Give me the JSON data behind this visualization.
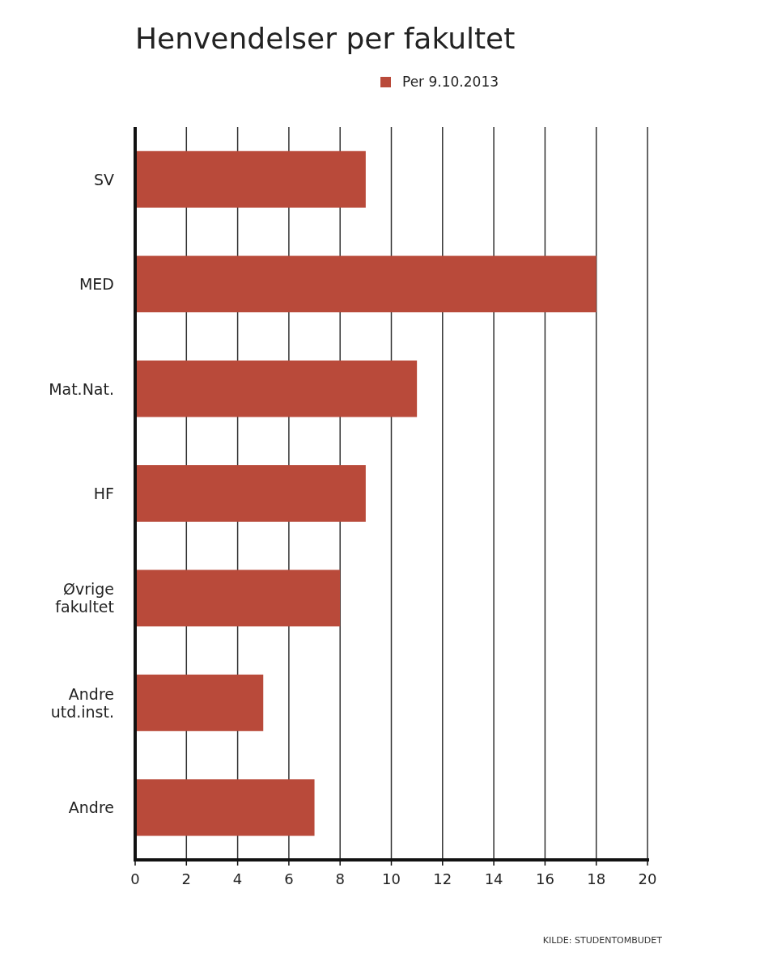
{
  "chart_data": {
    "type": "bar",
    "orientation": "horizontal",
    "title": "Henvendelser per fakultet",
    "categories": [
      "SV",
      "MED",
      "Mat.Nat.",
      "HF",
      "Øvrige fakultet",
      "Andre utd.inst.",
      "Andre"
    ],
    "series": [
      {
        "name": "Per 9.10.2013",
        "color": "#b94a3a",
        "values": [
          9,
          18,
          11,
          9,
          8,
          5,
          7
        ]
      }
    ],
    "xlim": [
      0,
      20
    ],
    "xticks": [
      0,
      2,
      4,
      6,
      8,
      10,
      12,
      14,
      16,
      18,
      20
    ],
    "grid": "x",
    "legend": "top",
    "annotations": [
      "KILDE: STUDENTOMBUDET"
    ]
  }
}
